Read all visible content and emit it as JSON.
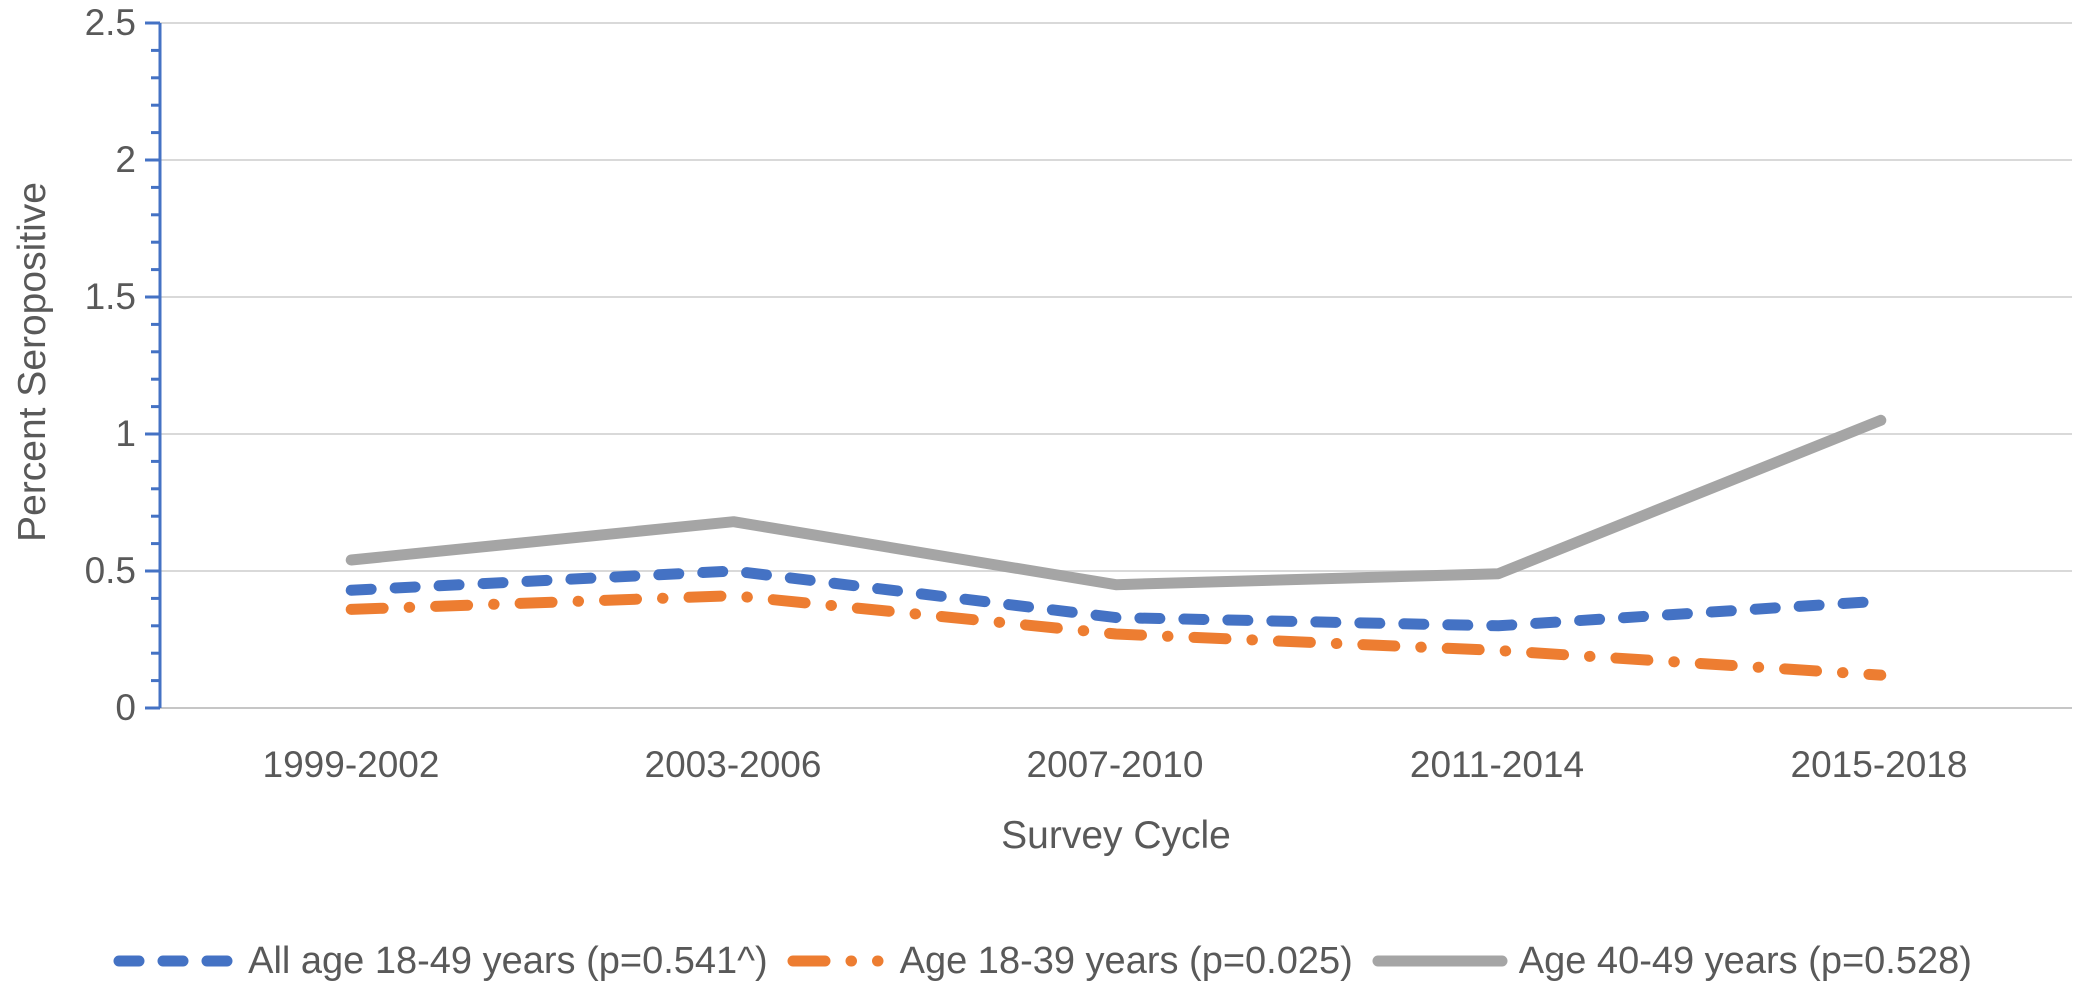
{
  "chart_data": {
    "type": "line",
    "title": "",
    "xlabel": "Survey Cycle",
    "ylabel": "Percent Seropositive",
    "categories": [
      "1999-2002",
      "2003-2006",
      "2007-2010",
      "2011-2014",
      "2015-2018"
    ],
    "series": [
      {
        "name": "All age 18-49 years (p=0.541^)",
        "values": [
          0.43,
          0.5,
          0.33,
          0.3,
          0.39
        ],
        "color": "#4472C4",
        "style": "dashed"
      },
      {
        "name": "Age 18-39 years (p=0.025)",
        "values": [
          0.36,
          0.41,
          0.27,
          0.21,
          0.12
        ],
        "color": "#ED7D31",
        "style": "dash-dot"
      },
      {
        "name": "Age 40-49 years (p=0.528)",
        "values": [
          0.54,
          0.68,
          0.45,
          0.49,
          1.05
        ],
        "color": "#A5A5A5",
        "style": "solid"
      }
    ],
    "ylim": [
      0,
      2.5
    ],
    "yticks": [
      0,
      0.5,
      1,
      1.5,
      2,
      2.5
    ],
    "ytick_labels": [
      "0",
      "0.5",
      "1",
      "1.5",
      "2",
      "2.5"
    ],
    "minor_tick_step": 0.1,
    "grid": true,
    "legend_position": "bottom",
    "colors": {
      "axis_line": "#4472C4",
      "x_axis_line": "#C6C6C6",
      "gridline": "#D9D9D9",
      "text": "#595959"
    }
  }
}
